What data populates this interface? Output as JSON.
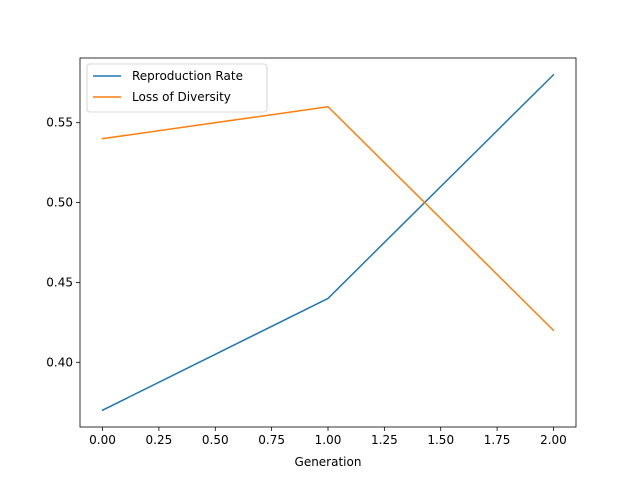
{
  "chart_data": {
    "type": "line",
    "x": [
      0,
      1,
      2
    ],
    "series": [
      {
        "name": "Reproduction Rate",
        "values": [
          0.37,
          0.44,
          0.58
        ],
        "color": "#1f77b4"
      },
      {
        "name": "Loss of Diversity",
        "values": [
          0.54,
          0.56,
          0.42
        ],
        "color": "#ff7f0e"
      }
    ],
    "xlabel": "Generation",
    "ylabel": "",
    "xlim": [
      -0.1,
      2.1
    ],
    "ylim": [
      0.3595,
      0.5905
    ],
    "xticks": [
      0.0,
      0.25,
      0.5,
      0.75,
      1.0,
      1.25,
      1.5,
      1.75,
      2.0
    ],
    "xtick_labels": [
      "0.00",
      "0.25",
      "0.50",
      "0.75",
      "1.00",
      "1.25",
      "1.50",
      "1.75",
      "2.00"
    ],
    "yticks": [
      0.4,
      0.45,
      0.5,
      0.55
    ],
    "ytick_labels": [
      "0.40",
      "0.45",
      "0.50",
      "0.55"
    ],
    "grid": false,
    "legend_position": "top-left"
  }
}
